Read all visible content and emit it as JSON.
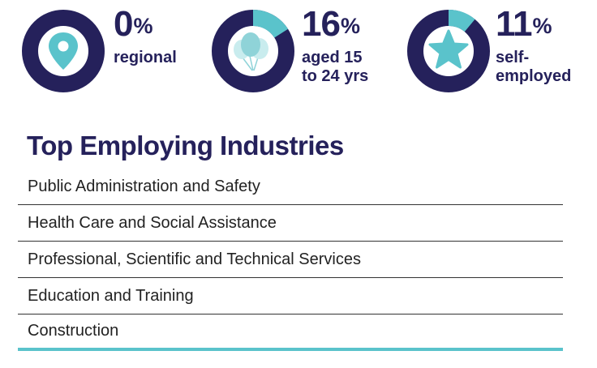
{
  "stats": [
    {
      "value": "0",
      "unit": "%",
      "label_lines": [
        "regional",
        ""
      ],
      "fraction": 0.0,
      "icon": "location-pin-icon"
    },
    {
      "value": "16",
      "unit": "%",
      "label_lines": [
        "aged 15",
        "to 24 yrs"
      ],
      "fraction": 0.16,
      "icon": "balloons-icon"
    },
    {
      "value": "11",
      "unit": "%",
      "label_lines": [
        "self-",
        "employed"
      ],
      "fraction": 0.11,
      "icon": "star-icon"
    }
  ],
  "colors": {
    "navy": "#25215b",
    "teal": "#5ac3cb",
    "light_teal": "#a7dde1"
  },
  "industries": {
    "title": "Top Employing Industries",
    "items": [
      "Public Administration and Safety",
      "Health Care and Social Assistance",
      "Professional, Scientific and Technical Services",
      "Education and Training",
      "Construction"
    ]
  }
}
